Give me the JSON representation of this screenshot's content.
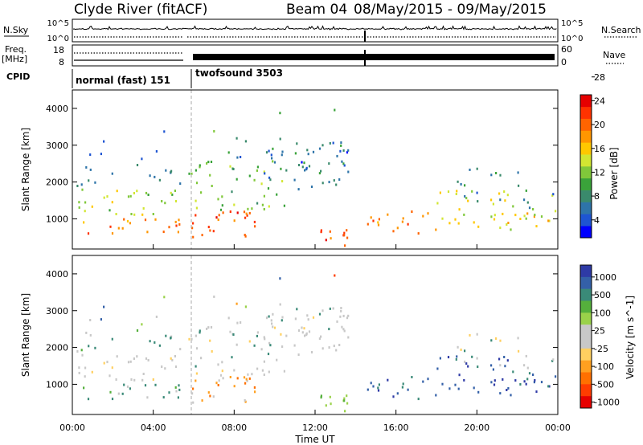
{
  "header": {
    "station": "Clyde River (fitACF)",
    "beam_label": "Beam 04",
    "date_range": "08/May/2015 - 09/May/2015"
  },
  "strips": {
    "nsky_label": "N.Sky",
    "nsky_ticks": [
      "10^5",
      "10^0"
    ],
    "nsearch_label": "N.Search",
    "nsearch_ticks": [
      "10^5",
      "10^0"
    ],
    "freq_label": "Freq.",
    "freq_unit": "[MHz]",
    "freq_ticks": [
      "18",
      "8"
    ],
    "nave_label": "Nave",
    "nave_ticks": [
      "60",
      "0"
    ],
    "cpid_label": "CPID",
    "cpid_segments": [
      "normal (fast) 151",
      "twofsound 3503"
    ]
  },
  "chart_data": [
    {
      "type": "heatmap",
      "name": "power",
      "ylabel": "Slant Range [km]",
      "xlabel": "",
      "ylim": [
        180,
        4500
      ],
      "xlim": [
        0,
        24
      ],
      "yticks": [
        "1000",
        "2000",
        "3000",
        "4000"
      ],
      "colorbar": {
        "label": "Power [dB]",
        "ticks": [
          "4",
          "8",
          "12",
          "16",
          "20",
          "24",
          "28"
        ],
        "colors": [
          "#0000ff",
          "#1e55d2",
          "#2e74a9",
          "#3a8a6c",
          "#3aa33a",
          "#80c83a",
          "#d2e632",
          "#ffc800",
          "#ff9600",
          "#ff6400",
          "#ff3200",
          "#e60000"
        ]
      }
    },
    {
      "type": "heatmap",
      "name": "velocity",
      "ylabel": "Slant Range [km]",
      "xlabel": "Time UT",
      "ylim": [
        180,
        4500
      ],
      "xlim": [
        0,
        24
      ],
      "yticks": [
        "1000",
        "2000",
        "3000",
        "4000"
      ],
      "xticks": [
        "00:00",
        "04:00",
        "08:00",
        "12:00",
        "16:00",
        "20:00",
        "00:00"
      ],
      "colorbar": {
        "label": "Velocity [m s^-1]",
        "ticks": [
          "1000",
          "500",
          "100",
          "25",
          "-25",
          "-100",
          "-500",
          "-1000"
        ],
        "colors": [
          "#2e3aa6",
          "#3460a8",
          "#3a8a78",
          "#55b03c",
          "#9ad24a",
          "#c8c8c8",
          "#c8c8c8",
          "#ffd060",
          "#ffa020",
          "#ff7000",
          "#ff3c00",
          "#e60000"
        ]
      }
    }
  ]
}
